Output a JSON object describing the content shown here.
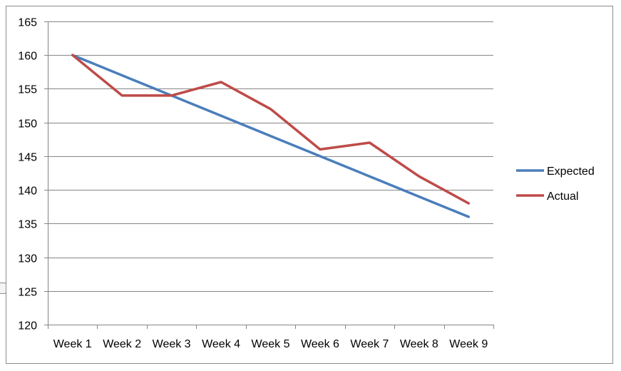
{
  "chart_data": {
    "type": "line",
    "categories": [
      "Week 1",
      "Week 2",
      "Week 3",
      "Week 4",
      "Week 5",
      "Week 6",
      "Week 7",
      "Week 8",
      "Week 9"
    ],
    "ylim": [
      120,
      165
    ],
    "yticks": [
      120,
      125,
      130,
      135,
      140,
      145,
      150,
      155,
      160,
      165
    ],
    "grid": true,
    "legend_position": "right",
    "series": [
      {
        "name": "Expected",
        "color": "#4a7ebb",
        "values": [
          160,
          157,
          154,
          151,
          148,
          145,
          142,
          139,
          136
        ]
      },
      {
        "name": "Actual",
        "color": "#be4b48",
        "values": [
          160,
          154,
          154,
          156,
          152,
          146,
          147,
          142,
          138
        ]
      }
    ]
  }
}
